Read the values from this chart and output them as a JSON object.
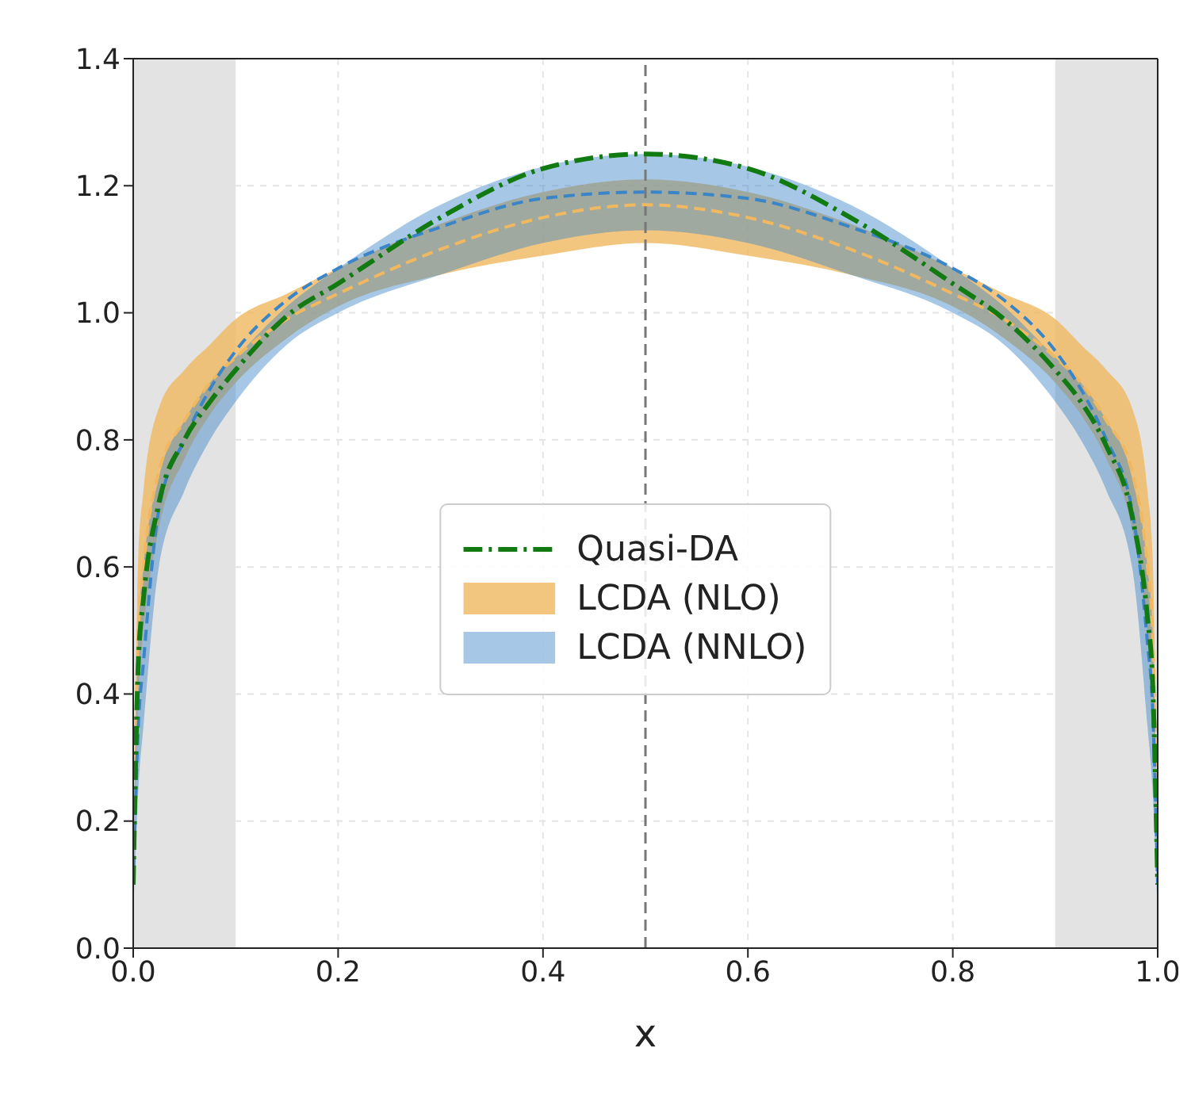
{
  "chart_data": {
    "type": "line",
    "xlabel": "x",
    "x": [
      0,
      0.005,
      0.01,
      0.025,
      0.05,
      0.075,
      0.1,
      0.15,
      0.2,
      0.3,
      0.4,
      0.5,
      0.6,
      0.7,
      0.8,
      0.85,
      0.9,
      0.925,
      0.95,
      0.975,
      0.99,
      0.995,
      1
    ],
    "series": [
      {
        "name": "LCDA (NLO)",
        "color": "#f0b860",
        "line_style": "dashed",
        "values": [
          0.1,
          0.5,
          0.6,
          0.75,
          0.83,
          0.89,
          0.93,
          0.99,
          1.03,
          1.1,
          1.15,
          1.17,
          1.15,
          1.1,
          1.03,
          0.99,
          0.93,
          0.89,
          0.83,
          0.75,
          0.6,
          0.5,
          0.1
        ],
        "lower": [
          0.1,
          0.4,
          0.5,
          0.66,
          0.77,
          0.84,
          0.89,
          0.96,
          1.01,
          1.06,
          1.09,
          1.11,
          1.09,
          1.06,
          1.01,
          0.96,
          0.89,
          0.84,
          0.77,
          0.66,
          0.5,
          0.4,
          0.1
        ],
        "upper": [
          0.1,
          0.62,
          0.72,
          0.85,
          0.91,
          0.95,
          0.99,
          1.03,
          1.07,
          1.14,
          1.19,
          1.21,
          1.19,
          1.14,
          1.07,
          1.03,
          0.99,
          0.95,
          0.91,
          0.85,
          0.72,
          0.62,
          0.1
        ]
      },
      {
        "name": "LCDA (NNLO)",
        "color": "#3a85c8",
        "line_style": "dashed",
        "values": [
          0.1,
          0.35,
          0.45,
          0.69,
          0.8,
          0.88,
          0.94,
          1.02,
          1.07,
          1.135,
          1.18,
          1.19,
          1.18,
          1.135,
          1.07,
          1.02,
          0.94,
          0.88,
          0.8,
          0.69,
          0.48,
          0.38,
          0.1
        ],
        "lower": [
          0.05,
          0.25,
          0.35,
          0.6,
          0.72,
          0.8,
          0.86,
          0.95,
          1.0,
          1.06,
          1.11,
          1.13,
          1.11,
          1.06,
          1.0,
          0.95,
          0.86,
          0.8,
          0.72,
          0.6,
          0.35,
          0.25,
          0.05
        ],
        "upper": [
          0.1,
          0.5,
          0.6,
          0.74,
          0.83,
          0.89,
          0.93,
          1.01,
          1.07,
          1.17,
          1.23,
          1.25,
          1.23,
          1.17,
          1.07,
          1.01,
          0.93,
          0.89,
          0.83,
          0.74,
          0.6,
          0.5,
          0.1
        ]
      },
      {
        "name": "Quasi-DA",
        "color": "#117a11",
        "line_style": "dashdot",
        "values": [
          0.1,
          0.45,
          0.55,
          0.7,
          0.8,
          0.86,
          0.91,
          0.995,
          1.046,
          1.15,
          1.227,
          1.25,
          1.227,
          1.15,
          1.046,
          0.99,
          0.91,
          0.86,
          0.79,
          0.68,
          0.52,
          0.42,
          0.1
        ]
      }
    ],
    "xlim": [
      0,
      1
    ],
    "ylim": [
      0,
      1.4
    ],
    "xticks": [
      {
        "value": 0,
        "label": "0.0"
      },
      0.2,
      0.4,
      0.6,
      0.8,
      {
        "value": 1,
        "label": "1.0"
      }
    ],
    "yticks": [
      {
        "value": 0,
        "label": "0.0"
      },
      0.2,
      0.4,
      0.6,
      0.8,
      {
        "value": 1,
        "label": "1.0"
      },
      1.2,
      1.4
    ],
    "bands": [
      {
        "axis": "x",
        "from": 0,
        "to": 0.1,
        "color": "#e3e3e3"
      },
      {
        "axis": "x",
        "from": 0.9,
        "to": 1,
        "color": "#e3e3e3"
      }
    ],
    "ref_lines": [
      {
        "axis": "x",
        "value": 0.5,
        "color": "#777777",
        "line_style": "dashed"
      }
    ],
    "grid": true,
    "legend": "center"
  }
}
